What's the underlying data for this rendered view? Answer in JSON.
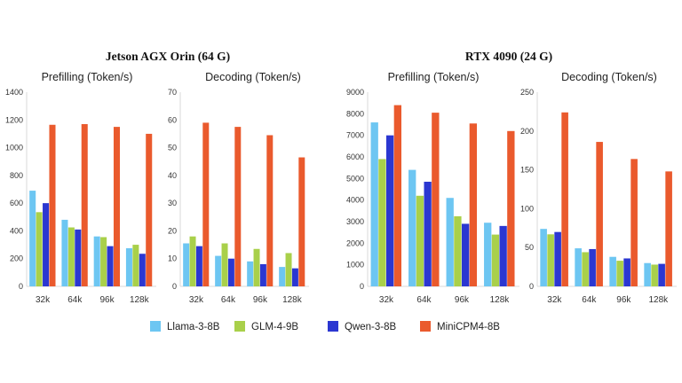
{
  "figure": {
    "groups": [
      {
        "title": "Jetson AGX Orin (64 G)"
      },
      {
        "title": "RTX 4090 (24 G)"
      }
    ],
    "legend": [
      {
        "name": "Llama-3-8B",
        "color": "#6dc6f2"
      },
      {
        "name": "GLM-4-9B",
        "color": "#a9d04a"
      },
      {
        "name": "Qwen-3-8B",
        "color": "#2b37d1"
      },
      {
        "name": "MiniCPM4-8B",
        "color": "#ea5a2d"
      }
    ]
  },
  "chart_data": [
    {
      "type": "bar",
      "title": "Prefilling (Token/s)",
      "group": "Jetson AGX Orin (64 G)",
      "categories": [
        "32k",
        "64k",
        "96k",
        "128k"
      ],
      "ylim": [
        0,
        1400
      ],
      "yticks": [
        "0",
        "200",
        "400",
        "600",
        "800",
        "1000",
        "1200",
        "1400"
      ],
      "series": [
        {
          "name": "Llama-3-8B",
          "values": [
            690,
            480,
            360,
            275
          ]
        },
        {
          "name": "GLM-4-9B",
          "values": [
            535,
            425,
            355,
            300
          ]
        },
        {
          "name": "Qwen-3-8B",
          "values": [
            600,
            410,
            290,
            235
          ]
        },
        {
          "name": "MiniCPM4-8B",
          "values": [
            1165,
            1170,
            1150,
            1100
          ]
        }
      ]
    },
    {
      "type": "bar",
      "title": "Decoding (Token/s)",
      "group": "Jetson AGX Orin (64 G)",
      "categories": [
        "32k",
        "64k",
        "96k",
        "128k"
      ],
      "ylim": [
        0,
        70
      ],
      "yticks": [
        "0",
        "10",
        "20",
        "30",
        "40",
        "50",
        "60",
        "70"
      ],
      "series": [
        {
          "name": "Llama-3-8B",
          "values": [
            15.5,
            11,
            9,
            7
          ]
        },
        {
          "name": "GLM-4-9B",
          "values": [
            18,
            15.5,
            13.5,
            12
          ]
        },
        {
          "name": "Qwen-3-8B",
          "values": [
            14.5,
            10,
            8,
            6.5
          ]
        },
        {
          "name": "MiniCPM4-8B",
          "values": [
            59,
            57.5,
            54.5,
            46.5
          ]
        }
      ]
    },
    {
      "type": "bar",
      "title": "Prefilling (Token/s)",
      "group": "RTX 4090 (24 G)",
      "categories": [
        "32k",
        "64k",
        "96k",
        "128k"
      ],
      "ylim": [
        0,
        9000
      ],
      "yticks": [
        "0",
        "1000",
        "2000",
        "3000",
        "4000",
        "5000",
        "6000",
        "7000",
        "8000",
        "9000"
      ],
      "series": [
        {
          "name": "Llama-3-8B",
          "values": [
            7600,
            5400,
            4100,
            2950
          ]
        },
        {
          "name": "GLM-4-9B",
          "values": [
            5900,
            4200,
            3250,
            2400
          ]
        },
        {
          "name": "Qwen-3-8B",
          "values": [
            7000,
            4850,
            2900,
            2800
          ]
        },
        {
          "name": "MiniCPM4-8B",
          "values": [
            8400,
            8050,
            7550,
            7200
          ]
        }
      ]
    },
    {
      "type": "bar",
      "title": "Decoding (Token/s)",
      "group": "RTX 4090 (24 G)",
      "categories": [
        "32k",
        "64k",
        "96k",
        "128k"
      ],
      "ylim": [
        0,
        250
      ],
      "yticks": [
        "0",
        "50",
        "100",
        "150",
        "200",
        "250"
      ],
      "series": [
        {
          "name": "Llama-3-8B",
          "values": [
            74,
            49,
            38,
            30
          ]
        },
        {
          "name": "GLM-4-9B",
          "values": [
            67,
            44,
            33,
            28
          ]
        },
        {
          "name": "Qwen-3-8B",
          "values": [
            70,
            48,
            36,
            29
          ]
        },
        {
          "name": "MiniCPM4-8B",
          "values": [
            224,
            186,
            164,
            148
          ]
        }
      ]
    }
  ]
}
